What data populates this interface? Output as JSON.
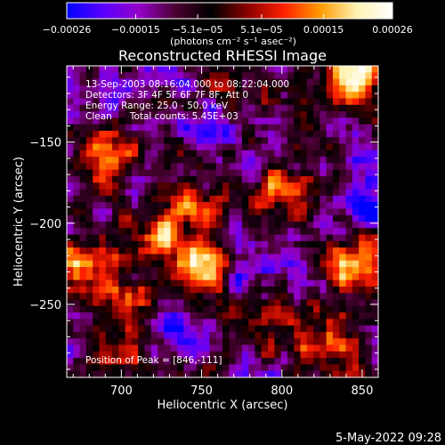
{
  "chart_data": {
    "type": "heatmap",
    "title": "Reconstructed RHESSI Image",
    "xlabel": "Heliocentric X (arcsec)",
    "ylabel": "Heliocentric Y (arcsec)",
    "xlim": [
      666,
      860
    ],
    "ylim": [
      -295,
      -103
    ],
    "x_ticks": [
      700,
      750,
      800,
      850
    ],
    "x_tick_labels": [
      "700",
      "750",
      "800",
      "850"
    ],
    "y_ticks": [
      -150,
      -200,
      -250
    ],
    "y_tick_labels": [
      "−150",
      "−200",
      "−250"
    ],
    "colorbar": {
      "min": -0.00026,
      "max": 0.00026,
      "tick_values": [
        -0.00026,
        -0.00015,
        -5.1e-05,
        5.1e-05,
        0.00015,
        0.00026
      ],
      "tick_labels": [
        "−0.00026",
        "−0.00015",
        "−5.1e−05",
        "5.1e−05",
        "0.00015",
        "0.00026"
      ],
      "unit_label": "(photons cm⁻² s⁻¹ asec⁻²)",
      "colormap": [
        "#0000ff",
        "#5a00ff",
        "#9400c8",
        "#4a0030",
        "#000000",
        "#8a0000",
        "#ff2000",
        "#ff9a00",
        "#fff2b0",
        "#ffffff"
      ]
    },
    "annotations": [
      "13-Sep-2003 08:16:04.000 to 08:22:04.000",
      "Detectors: 3F 4F 5F 6F 7F 8F, Att 0",
      "Energy Range: 25.0 - 50.0 keV",
      "Clean      Total counts: 5.45E+03"
    ],
    "peak_label": "Position of Peak = [846,-111]",
    "peak": {
      "x": 846,
      "y": -111
    },
    "bright_sources": [
      {
        "x": 846,
        "y": -111,
        "intensity": 1.0
      },
      {
        "x": 752,
        "y": -227,
        "intensity": 0.95
      },
      {
        "x": 672,
        "y": -227,
        "intensity": 0.85
      },
      {
        "x": 844,
        "y": -227,
        "intensity": 0.85
      },
      {
        "x": 800,
        "y": -183,
        "intensity": 0.7
      },
      {
        "x": 694,
        "y": -159,
        "intensity": 0.7
      },
      {
        "x": 722,
        "y": -206,
        "intensity": 0.6
      },
      {
        "x": 786,
        "y": -258,
        "intensity": 0.55
      },
      {
        "x": 706,
        "y": -252,
        "intensity": 0.6
      },
      {
        "x": 826,
        "y": -275,
        "intensity": 0.55
      },
      {
        "x": 744,
        "y": -184,
        "intensity": 0.5
      },
      {
        "x": 770,
        "y": -125,
        "intensity": 0.45
      },
      {
        "x": 700,
        "y": -285,
        "intensity": 0.5
      }
    ],
    "dark_sources": [
      {
        "x": 760,
        "y": -145,
        "intensity": 0.8
      },
      {
        "x": 730,
        "y": -263,
        "intensity": 0.9
      },
      {
        "x": 850,
        "y": -188,
        "intensity": 0.7
      },
      {
        "x": 776,
        "y": -232,
        "intensity": 0.7
      },
      {
        "x": 690,
        "y": -120,
        "intensity": 0.5
      }
    ]
  },
  "timestamp": "5-May-2022 09:28"
}
